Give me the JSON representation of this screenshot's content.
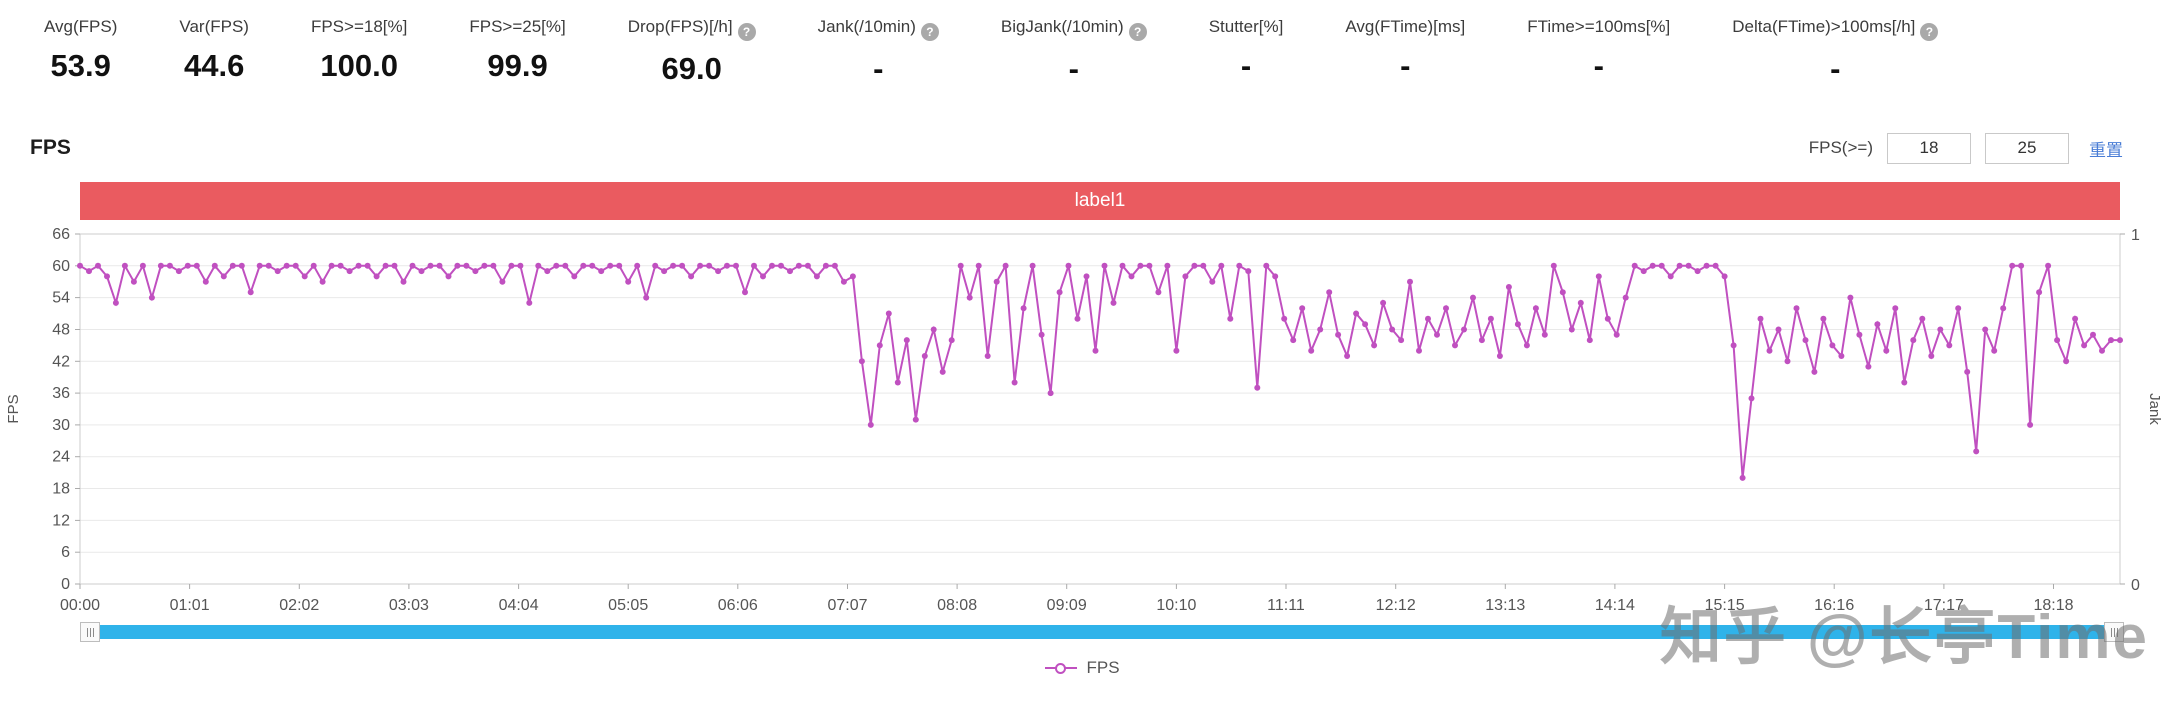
{
  "stats": {
    "items": [
      {
        "label": "Avg(FPS)",
        "value": "53.9",
        "help": false
      },
      {
        "label": "Var(FPS)",
        "value": "44.6",
        "help": false
      },
      {
        "label": "FPS>=18[%]",
        "value": "100.0",
        "help": false
      },
      {
        "label": "FPS>=25[%]",
        "value": "99.9",
        "help": false
      },
      {
        "label": "Drop(FPS)[/h]",
        "value": "69.0",
        "help": true
      },
      {
        "label": "Jank(/10min)",
        "value": "-",
        "help": true
      },
      {
        "label": "BigJank(/10min)",
        "value": "-",
        "help": true
      },
      {
        "label": "Stutter[%]",
        "value": "-",
        "help": false
      },
      {
        "label": "Avg(FTime)[ms]",
        "value": "-",
        "help": false
      },
      {
        "label": "FTime>=100ms[%]",
        "value": "-",
        "help": false
      },
      {
        "label": "Delta(FTime)>100ms[/h]",
        "value": "-",
        "help": true
      }
    ],
    "help_glyph": "?"
  },
  "section": {
    "title": "FPS"
  },
  "controls": {
    "fps_threshold_label": "FPS(>=)",
    "input1": "18",
    "input2": "25",
    "reset_label": "重置"
  },
  "banner": {
    "label": "label1",
    "color": "#ea5b60"
  },
  "chart_data": {
    "type": "line",
    "title": "",
    "ylabel_left": "FPS",
    "ylabel_right": "Jank",
    "yticks_left": [
      0,
      6,
      12,
      18,
      24,
      30,
      36,
      42,
      48,
      54,
      60,
      66
    ],
    "yticks_right": [
      0,
      1
    ],
    "ylim_left": [
      0,
      66
    ],
    "ylim_right": [
      0,
      1
    ],
    "xlim_seconds": [
      0,
      1135
    ],
    "grid": true,
    "legend_position": "bottom",
    "x_tick_labels": [
      "00:00",
      "01:01",
      "02:02",
      "03:03",
      "04:04",
      "05:05",
      "06:06",
      "07:07",
      "08:08",
      "09:09",
      "10:10",
      "11:11",
      "12:12",
      "13:13",
      "14:14",
      "15:15",
      "16:16",
      "17:17",
      "18:18"
    ],
    "x_tick_seconds": [
      0,
      61,
      122,
      183,
      244,
      305,
      366,
      427,
      488,
      549,
      610,
      671,
      732,
      793,
      854,
      915,
      976,
      1037,
      1098
    ],
    "series": [
      {
        "name": "FPS",
        "color": "#c050c0",
        "sample_interval_seconds": 5,
        "values": [
          60,
          59,
          60,
          58,
          53,
          60,
          57,
          60,
          54,
          60,
          60,
          59,
          60,
          60,
          57,
          60,
          58,
          60,
          60,
          55,
          60,
          60,
          59,
          60,
          60,
          58,
          60,
          57,
          60,
          60,
          59,
          60,
          60,
          58,
          60,
          60,
          57,
          60,
          59,
          60,
          60,
          58,
          60,
          60,
          59,
          60,
          60,
          57,
          60,
          60,
          53,
          60,
          59,
          60,
          60,
          58,
          60,
          60,
          59,
          60,
          60,
          57,
          60,
          54,
          60,
          59,
          60,
          60,
          58,
          60,
          60,
          59,
          60,
          60,
          55,
          60,
          58,
          60,
          60,
          59,
          60,
          60,
          58,
          60,
          60,
          57,
          58,
          42,
          30,
          45,
          51,
          38,
          46,
          31,
          43,
          48,
          40,
          46,
          60,
          54,
          60,
          43,
          57,
          60,
          38,
          52,
          60,
          47,
          36,
          55,
          60,
          50,
          58,
          44,
          60,
          53,
          60,
          58,
          60,
          60,
          55,
          60,
          44,
          58,
          60,
          60,
          57,
          60,
          50,
          60,
          59,
          37,
          60,
          58,
          50,
          46,
          52,
          44,
          48,
          55,
          47,
          43,
          51,
          49,
          45,
          53,
          48,
          46,
          57,
          44,
          50,
          47,
          52,
          45,
          48,
          54,
          46,
          50,
          43,
          56,
          49,
          45,
          52,
          47,
          60,
          55,
          48,
          53,
          46,
          58,
          50,
          47,
          54,
          60,
          59,
          60,
          60,
          58,
          60,
          60,
          59,
          60,
          60,
          58,
          45,
          20,
          35,
          50,
          44,
          48,
          42,
          52,
          46,
          40,
          50,
          45,
          43,
          54,
          47,
          41,
          49,
          44,
          52,
          38,
          46,
          50,
          43,
          48,
          45,
          52,
          40,
          25,
          48,
          44,
          52,
          60,
          60,
          30,
          55,
          60,
          46,
          42,
          50,
          45,
          47,
          44,
          46,
          46
        ]
      }
    ]
  },
  "legend": {
    "label": "FPS"
  },
  "watermark": {
    "text": "知乎 @长亭Time"
  },
  "colors": {
    "banner_red": "#ea5b60",
    "series_magenta": "#c050c0",
    "scrollbar_blue": "#2fb3ea",
    "link_blue": "#4a7dd6",
    "grid_gray": "#e9e9e9",
    "axis_gray": "#cccccc"
  }
}
